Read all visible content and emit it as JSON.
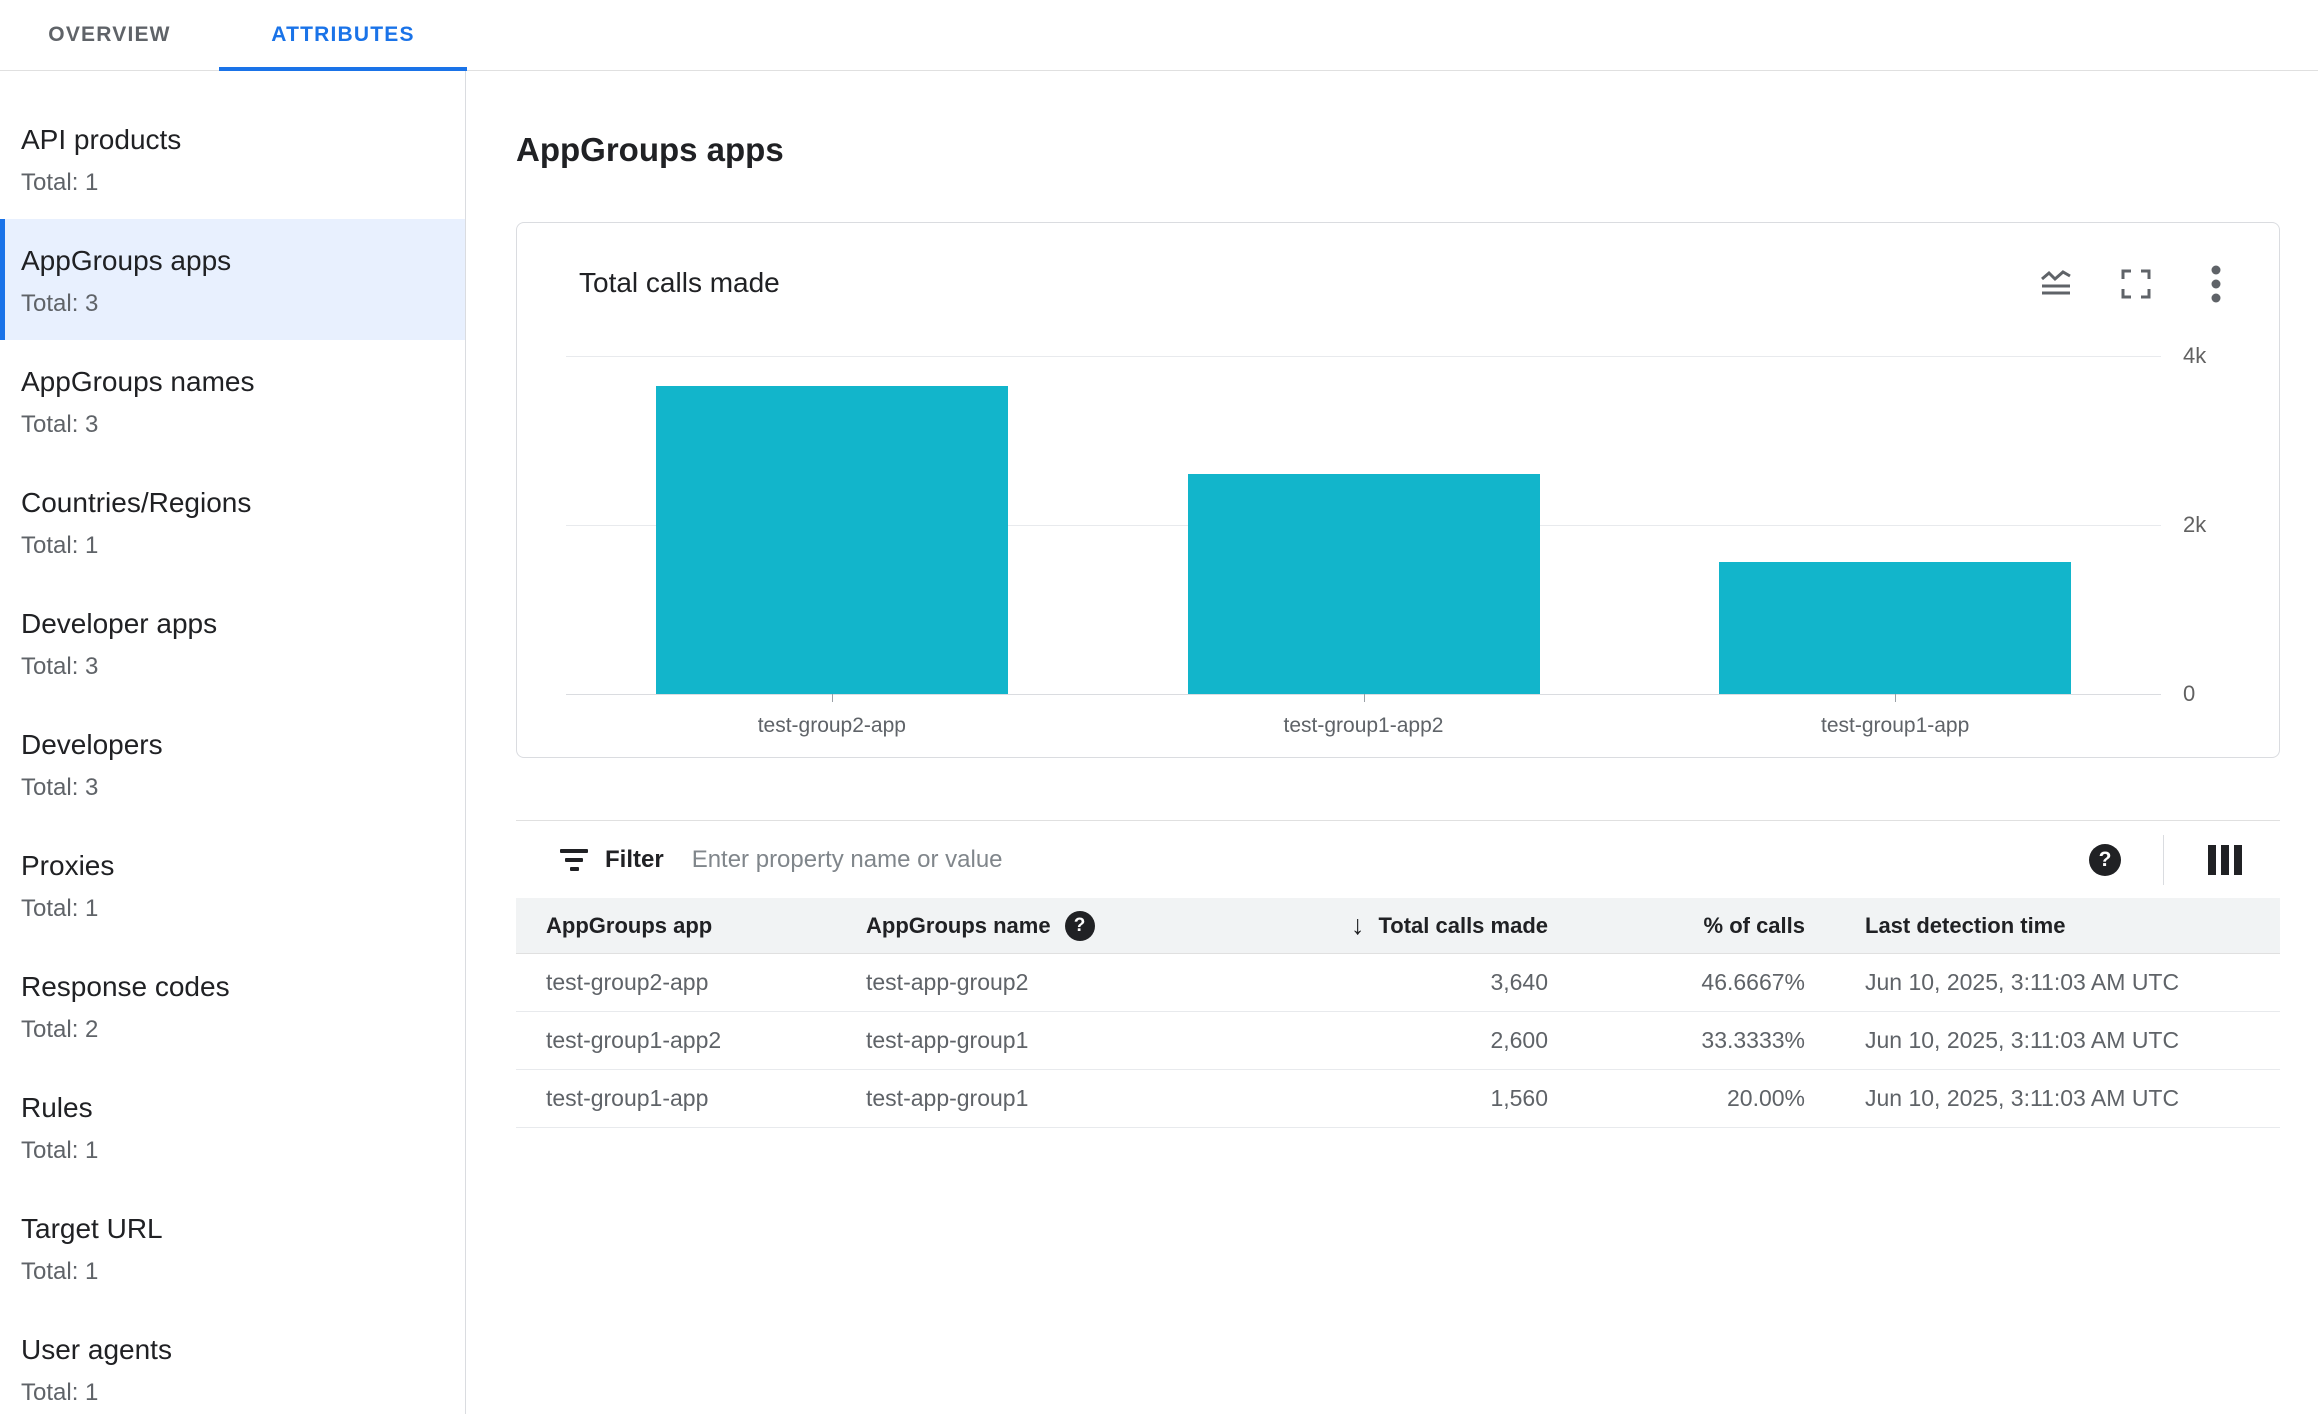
{
  "header": {
    "tabs": [
      {
        "label": "OVERVIEW",
        "active": false
      },
      {
        "label": "ATTRIBUTES",
        "active": true
      }
    ]
  },
  "sidebar": {
    "items": [
      {
        "label": "API products",
        "total": "Total: 1",
        "selected": false
      },
      {
        "label": "AppGroups apps",
        "total": "Total: 3",
        "selected": true
      },
      {
        "label": "AppGroups names",
        "total": "Total: 3",
        "selected": false
      },
      {
        "label": "Countries/Regions",
        "total": "Total: 1",
        "selected": false
      },
      {
        "label": "Developer apps",
        "total": "Total: 3",
        "selected": false
      },
      {
        "label": "Developers",
        "total": "Total: 3",
        "selected": false
      },
      {
        "label": "Proxies",
        "total": "Total: 1",
        "selected": false
      },
      {
        "label": "Response codes",
        "total": "Total: 2",
        "selected": false
      },
      {
        "label": "Rules",
        "total": "Total: 1",
        "selected": false
      },
      {
        "label": "Target URL",
        "total": "Total: 1",
        "selected": false
      },
      {
        "label": "User agents",
        "total": "Total: 1",
        "selected": false
      }
    ]
  },
  "main": {
    "page_title": "AppGroups apps",
    "card": {
      "title": "Total calls made",
      "icons": [
        "area-chart-icon",
        "fullscreen-icon",
        "kebab-menu-icon"
      ]
    },
    "filter": {
      "label": "Filter",
      "placeholder": "Enter property name or value",
      "help_glyph": "?"
    },
    "table": {
      "columns": [
        "AppGroups app",
        "AppGroups name",
        "Total calls made",
        "% of calls",
        "Last detection time"
      ],
      "sort_arrow": "↓",
      "name_help_glyph": "?",
      "rows": [
        {
          "app": "test-group2-app",
          "name": "test-app-group2",
          "calls": "3,640",
          "pct": "46.6667%",
          "time": "Jun 10, 2025, 3:11:03 AM UTC"
        },
        {
          "app": "test-group1-app2",
          "name": "test-app-group1",
          "calls": "2,600",
          "pct": "33.3333%",
          "time": "Jun 10, 2025, 3:11:03 AM UTC"
        },
        {
          "app": "test-group1-app",
          "name": "test-app-group1",
          "calls": "1,560",
          "pct": "20.00%",
          "time": "Jun 10, 2025, 3:11:03 AM UTC"
        }
      ]
    }
  },
  "chart_data": {
    "type": "bar",
    "title": "Total calls made",
    "categories": [
      "test-group2-app",
      "test-group1-app2",
      "test-group1-app"
    ],
    "values": [
      3640,
      2600,
      1560
    ],
    "ylim": [
      0,
      4000
    ],
    "yticks": [
      {
        "label": "4k",
        "value": 4000
      },
      {
        "label": "2k",
        "value": 2000
      },
      {
        "label": "0",
        "value": 0
      }
    ],
    "ytick_side": "right",
    "grid": true,
    "legend": "none",
    "bar_color": "#12B5CB"
  },
  "colors": {
    "accent_blue": "#1A73E8",
    "selected_bg": "#E8F0FE",
    "bar_teal": "#12B5CB",
    "text_primary": "#202124",
    "text_secondary": "#5F6368",
    "border": "#E0E0E0",
    "table_header_bg": "#F1F3F4"
  }
}
